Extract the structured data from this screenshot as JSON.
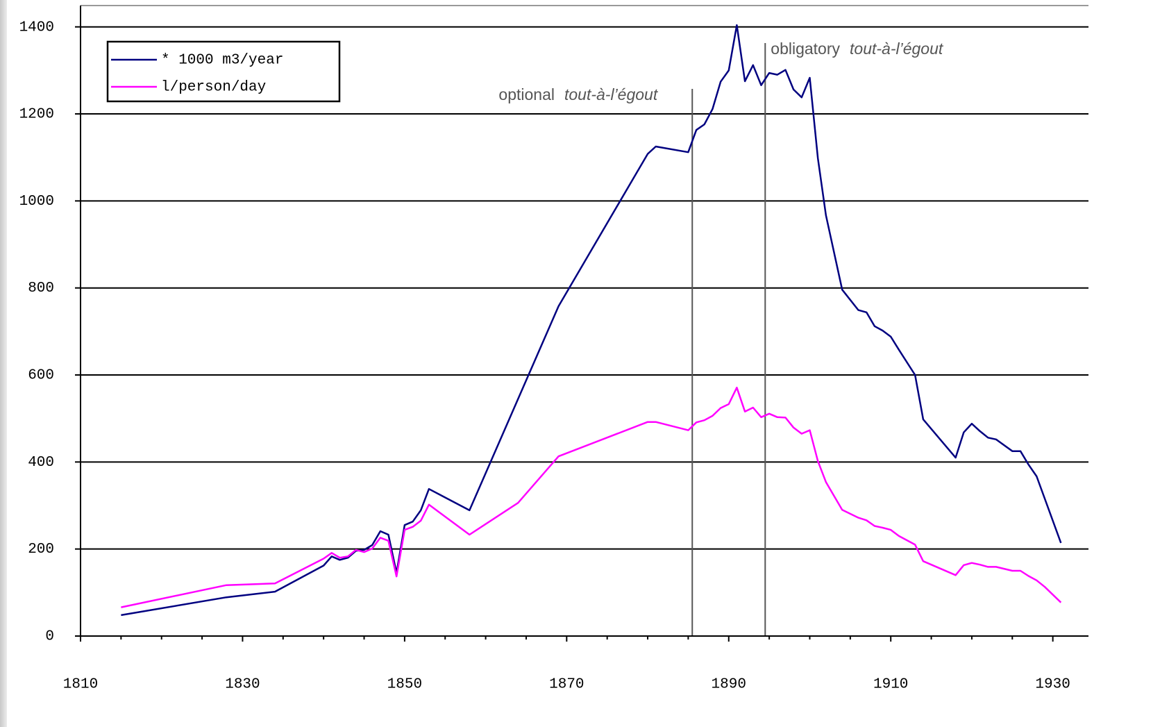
{
  "chart_data": {
    "type": "line",
    "xlim": [
      1810,
      1934.4
    ],
    "ylim": [
      0,
      1449
    ],
    "xticks": [
      1810,
      1830,
      1850,
      1870,
      1890,
      1910,
      1930
    ],
    "xminorticks": [
      1815,
      1820,
      1825,
      1835,
      1840,
      1845,
      1855,
      1860,
      1865,
      1875,
      1880,
      1885,
      1895,
      1900,
      1905,
      1915,
      1920,
      1925
    ],
    "yticks": [
      0,
      200,
      400,
      600,
      800,
      1000,
      1200,
      1400
    ],
    "grid": true,
    "legend": "top-left",
    "annotations": [
      {
        "text": "optional",
        "emphasis": "tout-à-l’égout",
        "x": 1885.5
      },
      {
        "text": "obligatory",
        "emphasis": "tout-à-l’égout",
        "x": 1894.5
      }
    ],
    "series": [
      {
        "name": "* 1000 m3/year",
        "color": "#000080",
        "x": [
          1815,
          1828,
          1834,
          1840,
          1841,
          1842,
          1843,
          1844,
          1845,
          1846,
          1847,
          1848,
          1849,
          1850,
          1851,
          1852,
          1853,
          1858,
          1869,
          1880,
          1881,
          1885,
          1886,
          1887,
          1888,
          1889,
          1890,
          1891,
          1892,
          1893,
          1894,
          1895,
          1896,
          1897,
          1898,
          1899,
          1900,
          1901,
          1902,
          1904,
          1906,
          1907,
          1908,
          1909,
          1910,
          1911,
          1913,
          1914,
          1918,
          1919,
          1920,
          1921,
          1922,
          1923,
          1925,
          1926,
          1927,
          1928,
          1931
        ],
        "values": [
          48,
          89,
          102,
          162,
          183,
          175,
          180,
          196,
          198,
          209,
          241,
          233,
          145,
          255,
          263,
          289,
          338,
          289,
          758,
          1108,
          1125,
          1112,
          1163,
          1176,
          1211,
          1274,
          1300,
          1404,
          1275,
          1312,
          1266,
          1294,
          1290,
          1301,
          1256,
          1238,
          1283,
          1098,
          967,
          796,
          749,
          744,
          712,
          702,
          688,
          658,
          600,
          498,
          410,
          468,
          488,
          471,
          456,
          452,
          425,
          425,
          394,
          367,
          214
        ]
      },
      {
        "name": "l/person/day",
        "color": "#ff00ff",
        "x": [
          1815,
          1828,
          1834,
          1840,
          1841,
          1842,
          1843,
          1844,
          1845,
          1846,
          1847,
          1848,
          1849,
          1850,
          1851,
          1852,
          1853,
          1858,
          1864,
          1869,
          1880,
          1881,
          1885,
          1886,
          1887,
          1888,
          1889,
          1890,
          1891,
          1892,
          1893,
          1894,
          1895,
          1896,
          1897,
          1898,
          1899,
          1900,
          1901,
          1902,
          1904,
          1906,
          1907,
          1908,
          1909,
          1910,
          1911,
          1913,
          1914,
          1918,
          1919,
          1920,
          1921,
          1922,
          1923,
          1925,
          1926,
          1927,
          1928,
          1929,
          1931
        ],
        "values": [
          66,
          117,
          121,
          178,
          191,
          180,
          183,
          198,
          193,
          201,
          226,
          219,
          137,
          244,
          251,
          265,
          302,
          233,
          306,
          413,
          492,
          492,
          473,
          491,
          496,
          506,
          524,
          533,
          571,
          516,
          525,
          503,
          511,
          503,
          502,
          479,
          465,
          473,
          402,
          354,
          290,
          272,
          266,
          253,
          249,
          244,
          230,
          210,
          172,
          140,
          163,
          168,
          164,
          159,
          159,
          150,
          150,
          138,
          128,
          113,
          77
        ]
      }
    ]
  }
}
